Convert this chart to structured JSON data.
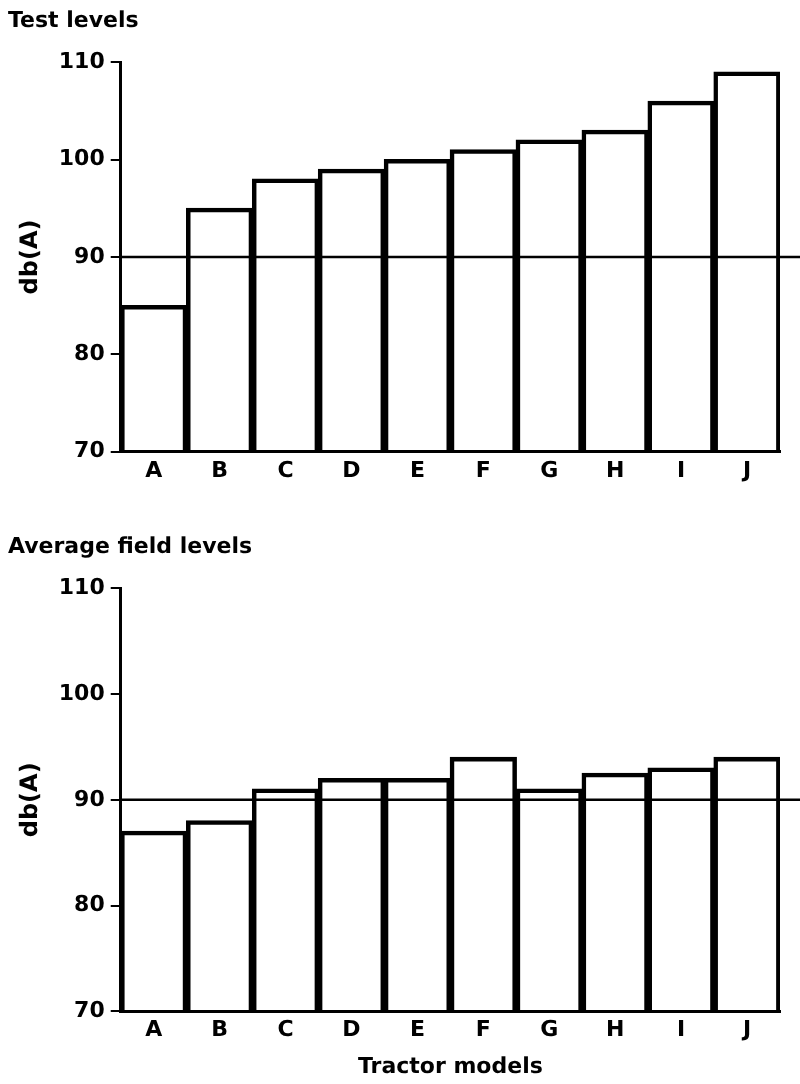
{
  "chart_data": [
    {
      "type": "bar",
      "title": "Test levels",
      "ylabel": "db(A)",
      "categories": [
        "A",
        "B",
        "C",
        "D",
        "E",
        "F",
        "G",
        "H",
        "I",
        "J"
      ],
      "values": [
        85,
        95,
        98,
        99,
        100,
        101,
        102,
        103,
        106,
        109
      ],
      "color": "#000000",
      "ylim": [
        70,
        110
      ],
      "yticks": [
        70,
        80,
        90,
        100,
        110
      ],
      "grid": false,
      "ref_lines": [
        {
          "axis": "y",
          "value": 90,
          "color": "#000000"
        }
      ]
    },
    {
      "type": "bar",
      "title": "Average field levels",
      "xlabel": "Tractor models",
      "ylabel": "db(A)",
      "categories": [
        "A",
        "B",
        "C",
        "D",
        "E",
        "F",
        "G",
        "H",
        "I",
        "J"
      ],
      "values": [
        87,
        88,
        91,
        92,
        92,
        94,
        91,
        92.5,
        93,
        94
      ],
      "color": "#000000",
      "ylim": [
        70,
        110
      ],
      "yticks": [
        70,
        80,
        90,
        100,
        110
      ],
      "grid": false,
      "ref_lines": [
        {
          "axis": "y",
          "value": 90,
          "color": "#000000"
        }
      ]
    }
  ]
}
